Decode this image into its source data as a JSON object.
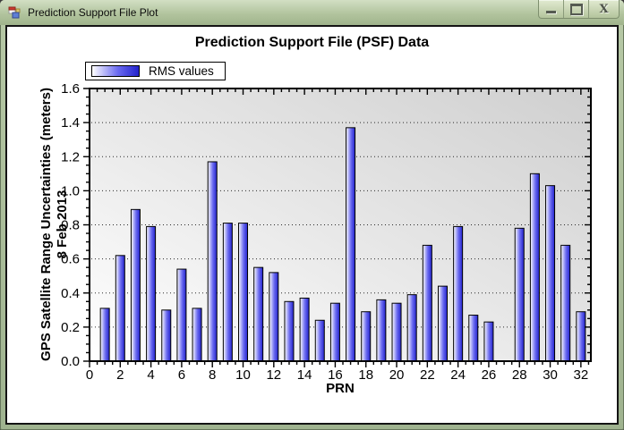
{
  "window": {
    "title": "Prediction Support File Plot"
  },
  "chart": {
    "title": "Prediction Support File (PSF) Data",
    "legend_label": "RMS values",
    "x_axis_title": "PRN",
    "y_axis_title_line1": "GPS Satellite Range Uncertainties (meters)",
    "y_axis_title_line2": "8 Feb 2013"
  },
  "chart_data": {
    "type": "bar",
    "title": "Prediction Support File (PSF) Data",
    "xlabel": "PRN",
    "ylabel": "GPS Satellite Range Uncertainties (meters) 8 Feb 2013",
    "legend": [
      {
        "label": "RMS values",
        "position": "top-left"
      }
    ],
    "xlim": [
      0,
      32.65
    ],
    "ylim": [
      0,
      1.6
    ],
    "x_major_step": 2,
    "x_minor_step": 0.5,
    "y_major_step": 0.2,
    "y_minor_step": 0.05,
    "grid": "horizontal-dotted",
    "plot_bg_gradient": [
      "#ffffff",
      "#cfcfcf"
    ],
    "bar_color_gradient": [
      "#ffffff",
      "#6b6bf0",
      "#2222cc"
    ],
    "bar_outline": "#000000",
    "x_tick_labels": [
      "0",
      "2",
      "4",
      "6",
      "8",
      "10",
      "12",
      "14",
      "16",
      "18",
      "20",
      "22",
      "24",
      "26",
      "28",
      "30",
      "32"
    ],
    "y_tick_labels": [
      "0.0",
      "0.2",
      "0.4",
      "0.6",
      "0.8",
      "1.0",
      "1.2",
      "1.4",
      "1.6"
    ],
    "points": [
      {
        "prn": 1,
        "value": 0.31
      },
      {
        "prn": 2,
        "value": 0.62
      },
      {
        "prn": 3,
        "value": 0.89
      },
      {
        "prn": 4,
        "value": 0.79
      },
      {
        "prn": 5,
        "value": 0.3
      },
      {
        "prn": 6,
        "value": 0.54
      },
      {
        "prn": 7,
        "value": 0.31
      },
      {
        "prn": 8,
        "value": 1.17
      },
      {
        "prn": 9,
        "value": 0.81
      },
      {
        "prn": 10,
        "value": 0.81
      },
      {
        "prn": 11,
        "value": 0.55
      },
      {
        "prn": 12,
        "value": 0.52
      },
      {
        "prn": 13,
        "value": 0.35
      },
      {
        "prn": 14,
        "value": 0.37
      },
      {
        "prn": 15,
        "value": 0.24
      },
      {
        "prn": 16,
        "value": 0.34
      },
      {
        "prn": 17,
        "value": 1.37
      },
      {
        "prn": 18,
        "value": 0.29
      },
      {
        "prn": 19,
        "value": 0.36
      },
      {
        "prn": 20,
        "value": 0.34
      },
      {
        "prn": 21,
        "value": 0.39
      },
      {
        "prn": 22,
        "value": 0.68
      },
      {
        "prn": 23,
        "value": 0.44
      },
      {
        "prn": 24,
        "value": 0.79
      },
      {
        "prn": 25,
        "value": 0.27
      },
      {
        "prn": 26,
        "value": 0.23
      },
      {
        "prn": 28,
        "value": 0.78
      },
      {
        "prn": 29,
        "value": 1.1
      },
      {
        "prn": 30,
        "value": 1.03
      },
      {
        "prn": 31,
        "value": 0.68
      },
      {
        "prn": 32,
        "value": 0.29
      }
    ]
  }
}
